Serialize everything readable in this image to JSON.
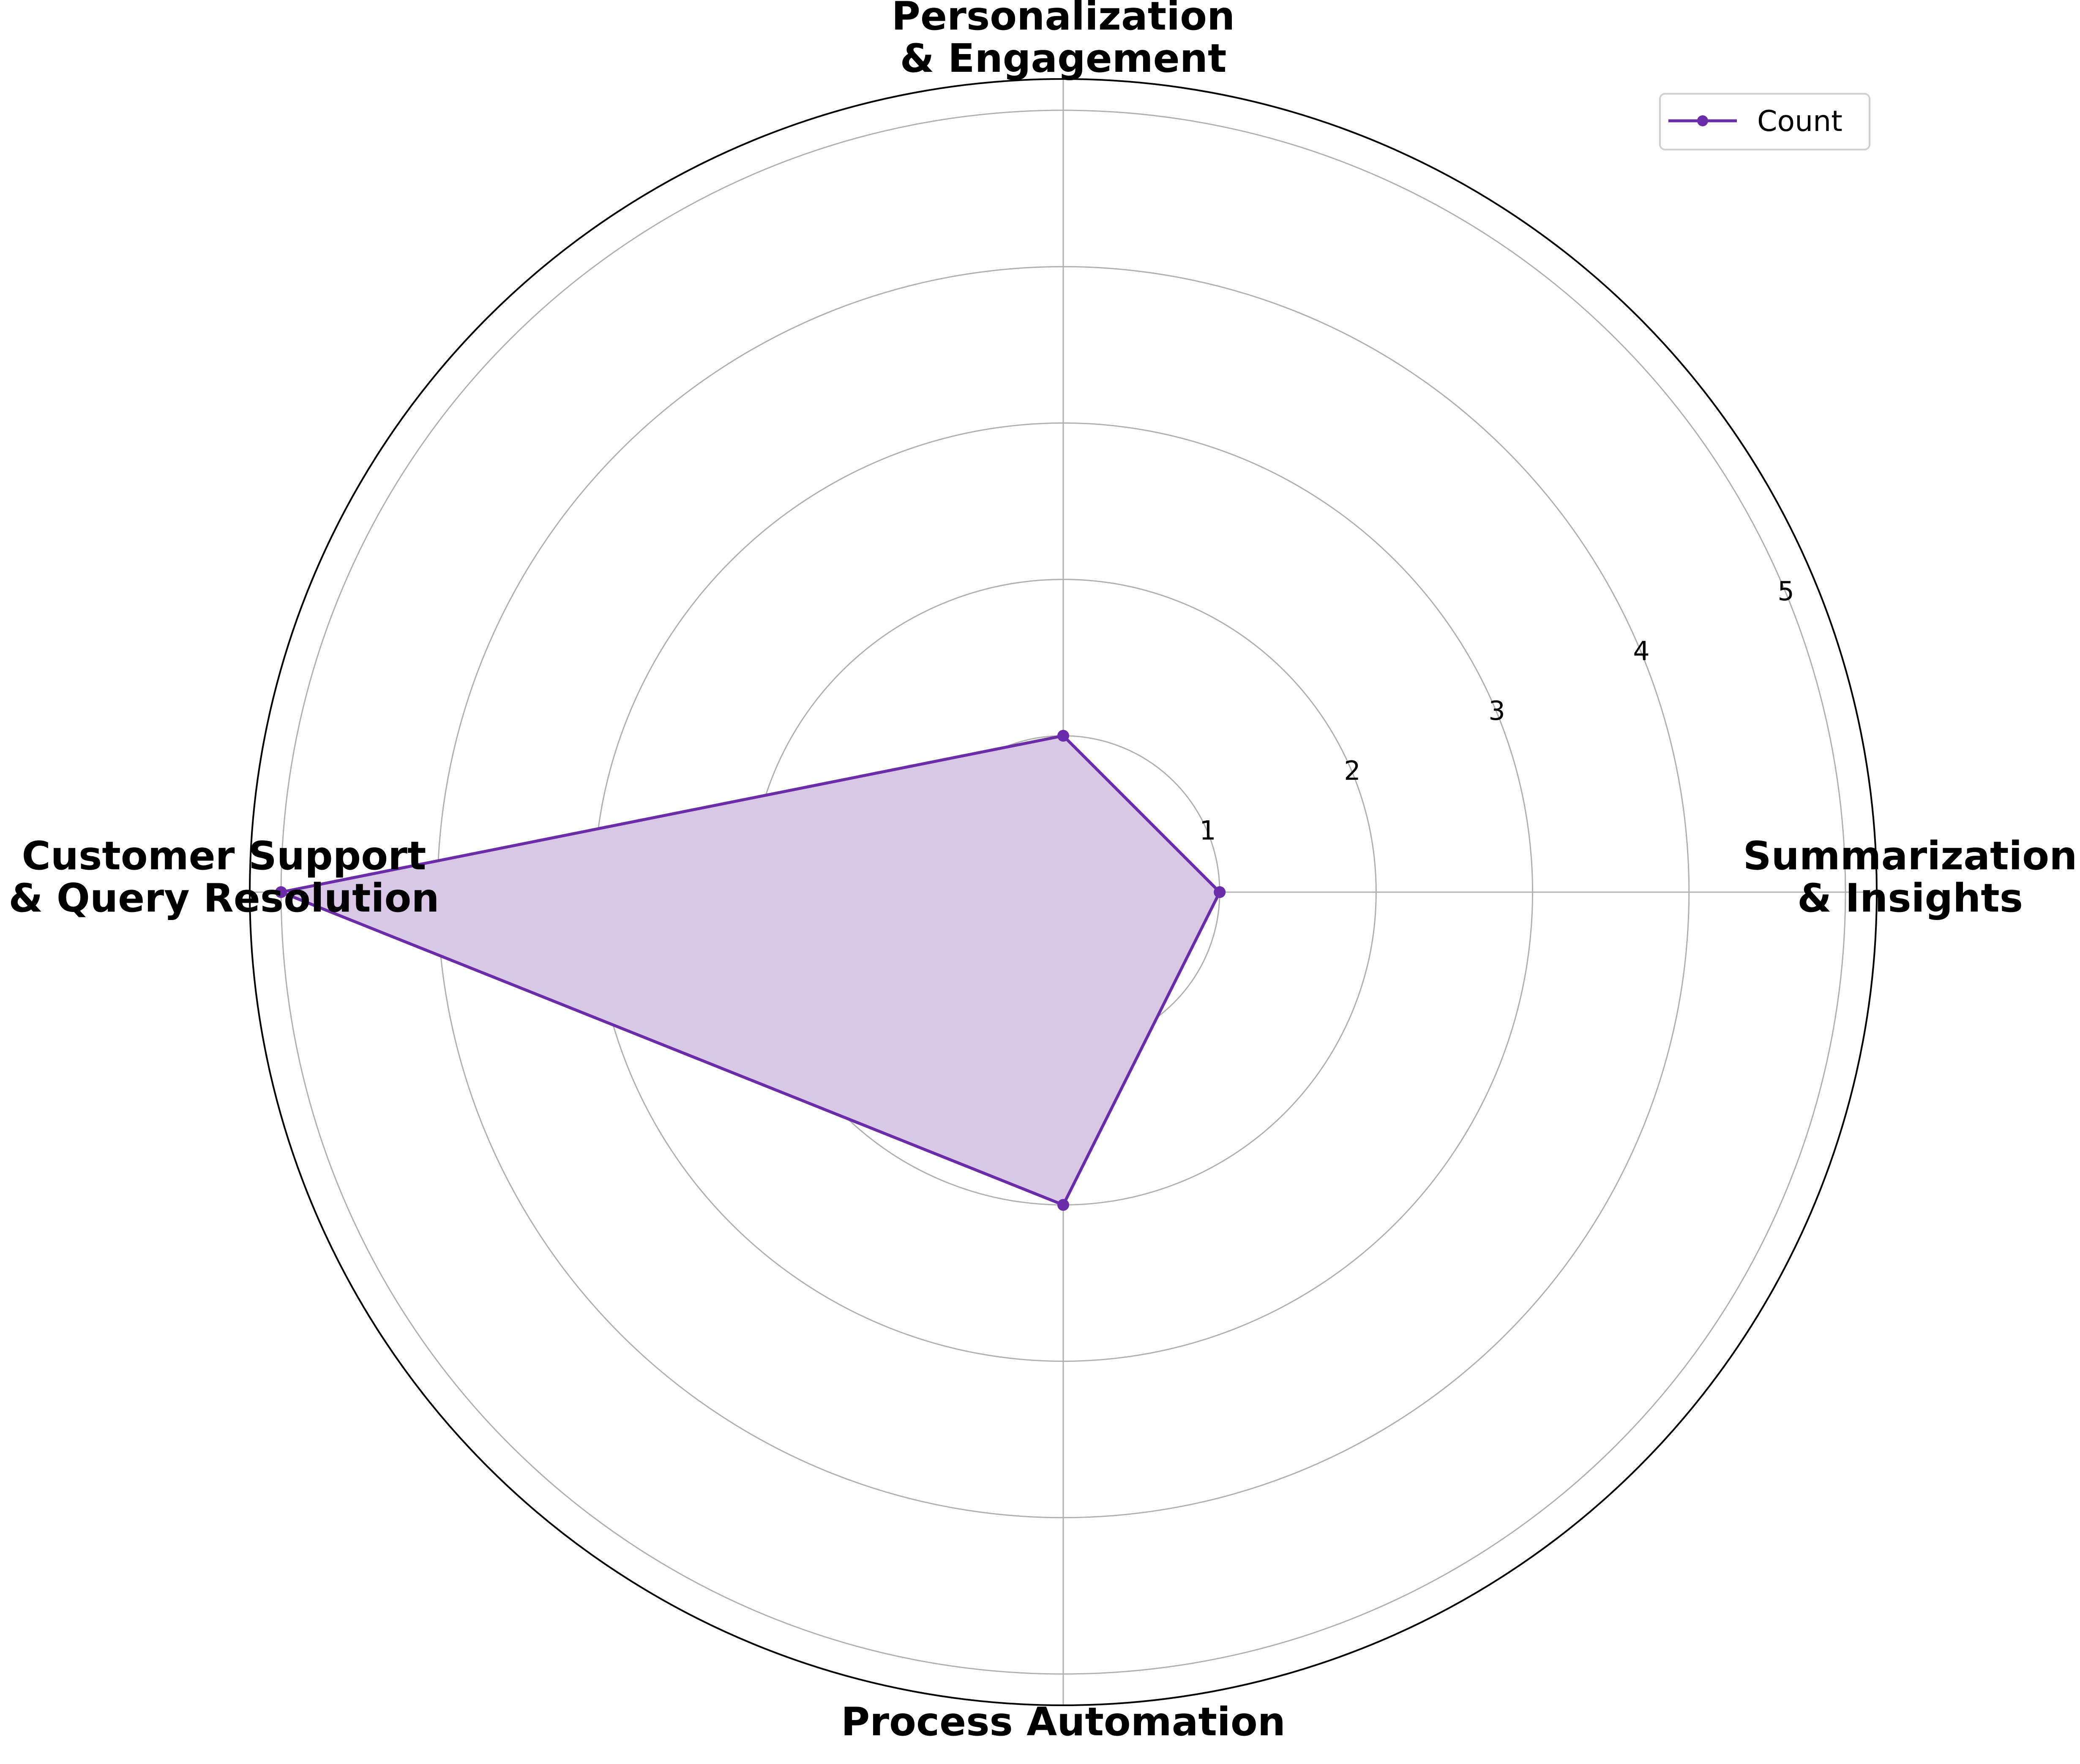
{
  "chart_data": {
    "type": "radar",
    "title": "",
    "categories": [
      "Summarization\n& Insights",
      "Personalization\n& Engagement",
      "Customer Support\n& Query Resolution",
      "Process Automation"
    ],
    "series": [
      {
        "name": "Count",
        "values": [
          1,
          1,
          5,
          2
        ],
        "color": "#6a2ca8",
        "fill_color": "#d9c7e6"
      }
    ],
    "radial_ticks": [
      "1",
      "2",
      "3",
      "4",
      "5"
    ],
    "rlim": [
      0,
      5.2
    ],
    "grid": true,
    "legend": {
      "entries": [
        "Count"
      ],
      "placement": "top-right"
    }
  }
}
